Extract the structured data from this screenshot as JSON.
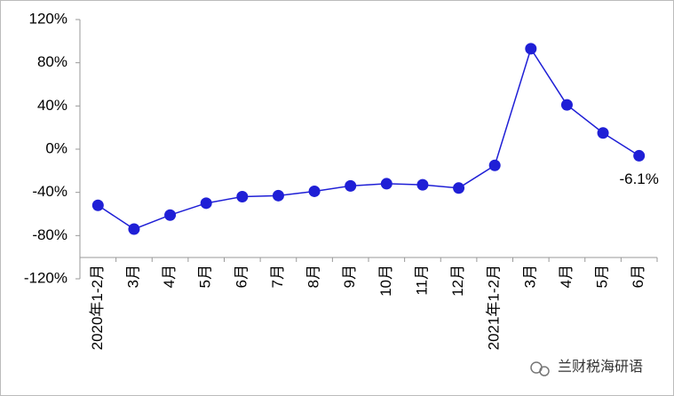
{
  "chart_data": {
    "type": "line",
    "categories": [
      "2020年1-2月",
      "3月",
      "4月",
      "5月",
      "6月",
      "7月",
      "8月",
      "9月",
      "10月",
      "11月",
      "12月",
      "2021年1-2月",
      "3月",
      "4月",
      "5月",
      "6月"
    ],
    "series": [
      {
        "color": "#1f1fd6",
        "values": [
          -52,
          -74,
          -61,
          -50,
          -44,
          -43,
          -39,
          -34,
          -32,
          -33,
          -36,
          -15,
          93,
          41,
          15,
          -6.1
        ],
        "value_labels": [
          null,
          null,
          null,
          null,
          null,
          null,
          null,
          null,
          null,
          null,
          null,
          null,
          null,
          null,
          null,
          "-6.1%"
        ]
      }
    ],
    "ylim": [
      -120,
      120
    ],
    "yticks": [
      {
        "value": 120,
        "label": "120%"
      },
      {
        "value": 80,
        "label": "80%"
      },
      {
        "value": 40,
        "label": "40%"
      },
      {
        "value": 0,
        "label": "0%"
      },
      {
        "value": -40,
        "label": "-40%"
      },
      {
        "value": -80,
        "label": "-80%"
      },
      {
        "value": -120,
        "label": "-120%"
      }
    ],
    "watermark": "兰财税海研语"
  }
}
